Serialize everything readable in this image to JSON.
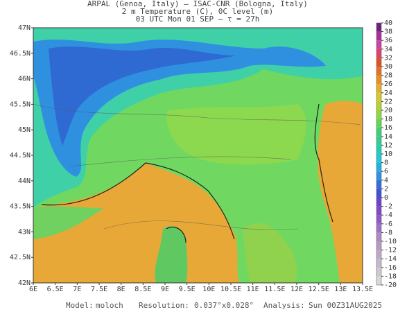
{
  "header": {
    "line1": "ARPAL (Genoa, Italy)  —  ISAC-CNR (Bologna, Italy)",
    "line2": "2 m Temperature (C), 0C level (m)",
    "line3": "03 UTC Mon 01 SEP  —  τ = 27h"
  },
  "map": {
    "xlim": [
      6,
      13.5
    ],
    "ylim": [
      42,
      47
    ],
    "xticks": [
      {
        "value": 6,
        "label": "6E"
      },
      {
        "value": 6.5,
        "label": "6.5E"
      },
      {
        "value": 7,
        "label": "7E"
      },
      {
        "value": 7.5,
        "label": "7.5E"
      },
      {
        "value": 8,
        "label": "8E"
      },
      {
        "value": 8.5,
        "label": "8.5E"
      },
      {
        "value": 9,
        "label": "9E"
      },
      {
        "value": 9.5,
        "label": "9.5E"
      },
      {
        "value": 10,
        "label": "10E"
      },
      {
        "value": 10.5,
        "label": "10.5E"
      },
      {
        "value": 11,
        "label": "11E"
      },
      {
        "value": 11.5,
        "label": "11.5E"
      },
      {
        "value": 12,
        "label": "12E"
      },
      {
        "value": 12.5,
        "label": "12.5E"
      },
      {
        "value": 13,
        "label": "13E"
      },
      {
        "value": 13.5,
        "label": "13.5E"
      }
    ],
    "yticks": [
      {
        "value": 47,
        "label": "47N"
      },
      {
        "value": 46.5,
        "label": "46.5N"
      },
      {
        "value": 46,
        "label": "46N"
      },
      {
        "value": 45.5,
        "label": "45.5N"
      },
      {
        "value": 45,
        "label": "45N"
      },
      {
        "value": 44.5,
        "label": "44.5N"
      },
      {
        "value": 44,
        "label": "44N"
      },
      {
        "value": 43.5,
        "label": "43.5N"
      },
      {
        "value": 43,
        "label": "43N"
      },
      {
        "value": 42.5,
        "label": "42.5N"
      },
      {
        "value": 42,
        "label": "42N"
      }
    ]
  },
  "colorbar": {
    "levels": [
      -20,
      -18,
      -16,
      -14,
      -12,
      -10,
      -8,
      -6,
      -4,
      -2,
      0,
      2,
      4,
      6,
      8,
      10,
      12,
      14,
      16,
      18,
      20,
      22,
      24,
      26,
      28,
      30,
      32,
      34,
      36,
      38,
      40
    ],
    "colors": [
      "#d8d8d8",
      "#cfc8d0",
      "#c6b8cc",
      "#c0a8c8",
      "#b898c4",
      "#b088c4",
      "#a070c8",
      "#9058c8",
      "#8048cc",
      "#7040d0",
      "#4050d8",
      "#3070e0",
      "#3090e8",
      "#20b0e8",
      "#20c8d8",
      "#20d0b0",
      "#30d090",
      "#40d070",
      "#60d850",
      "#90d840",
      "#b8d030",
      "#d8c828",
      "#e8b020",
      "#e89020",
      "#e87020",
      "#e05028",
      "#e04070",
      "#d040a0",
      "#a83098",
      "#702080"
    ]
  },
  "footer": {
    "model_label": "Model:",
    "model": "moloch",
    "resolution_label": "Resolution:",
    "resolution": "0.037°x0.028°",
    "analysis_label": "Analysis:",
    "analysis": "Sun 00Z31AUG2025"
  }
}
